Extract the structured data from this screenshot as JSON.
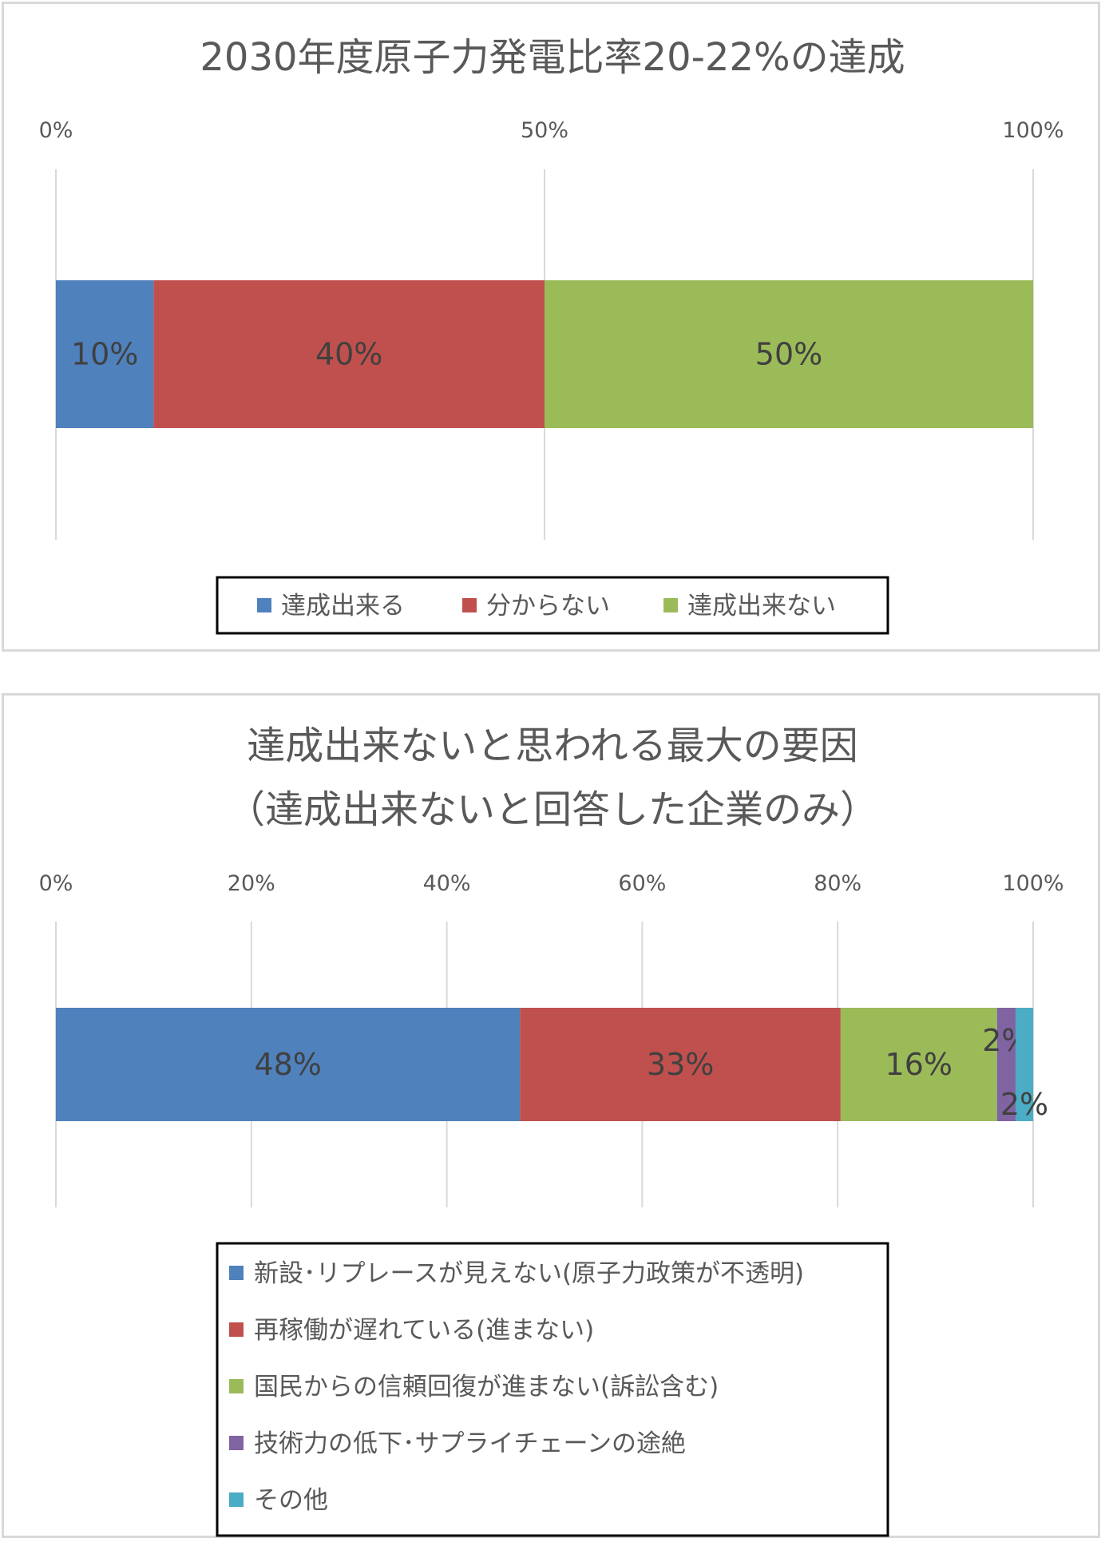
{
  "chart_data": [
    {
      "type": "bar",
      "orientation": "horizontal",
      "stacked": "percent",
      "title": "2030年度原子力発電比率20-22%の達成",
      "xlim": [
        0,
        100
      ],
      "ticks": [
        "0%",
        "50%",
        "100%"
      ],
      "grid": true,
      "legend_position": "bottom",
      "series": [
        {
          "name": "達成出来る",
          "value": 10,
          "label": "10%",
          "color": "#4f81bd"
        },
        {
          "name": "分からない",
          "value": 40,
          "label": "40%",
          "color": "#c0504d"
        },
        {
          "name": "達成出来ない",
          "value": 50,
          "label": "50%",
          "color": "#9bbb59"
        }
      ]
    },
    {
      "type": "bar",
      "orientation": "horizontal",
      "stacked": "percent",
      "title": [
        "達成出来ないと思われる最大の要因",
        "（達成出来ないと回答した企業のみ）"
      ],
      "xlim": [
        0,
        100
      ],
      "ticks": [
        "0%",
        "20%",
        "40%",
        "60%",
        "80%",
        "100%"
      ],
      "grid": true,
      "legend_position": "bottom",
      "series": [
        {
          "name": "新設･リプレースが見えない(原子力政策が不透明)",
          "value": 47.5,
          "label": "48%",
          "color": "#4f81bd"
        },
        {
          "name": "再稼働が遅れている(進まない)",
          "value": 32.8,
          "label": "33%",
          "color": "#c0504d"
        },
        {
          "name": "国民からの信頼回復が進まない(訴訟含む)",
          "value": 16.0,
          "label": "16%",
          "color": "#9bbb59"
        },
        {
          "name": "技術力の低下･サプライチェーンの途絶",
          "value": 1.9,
          "label": "2%",
          "color": "#8064a2"
        },
        {
          "name": "その他",
          "value": 1.8,
          "label": "2%",
          "color": "#4bacc6"
        }
      ]
    }
  ]
}
